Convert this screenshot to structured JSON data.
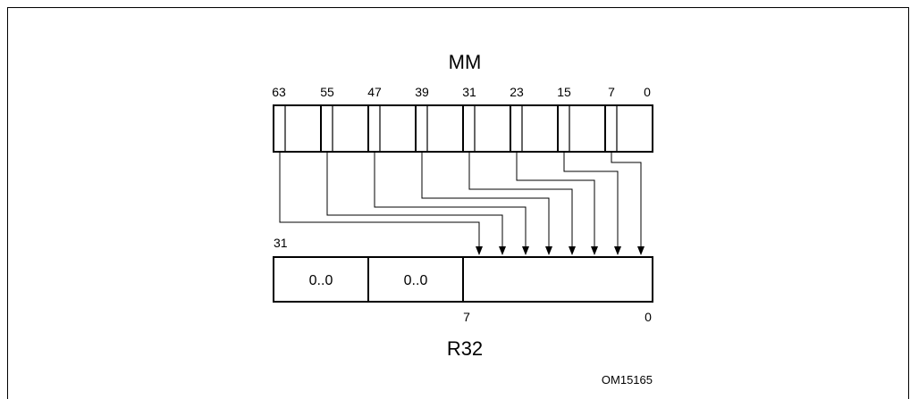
{
  "source": {
    "name": "MM",
    "bit_labels": [
      "63",
      "55",
      "47",
      "39",
      "31",
      "23",
      "15",
      "7",
      "0"
    ]
  },
  "destination": {
    "name": "R32",
    "msb_label": "31",
    "bit_labels_bottom": [
      "7",
      "0"
    ],
    "fields": [
      "0..0",
      "0..0",
      ""
    ]
  },
  "figure_code": "OM15165"
}
